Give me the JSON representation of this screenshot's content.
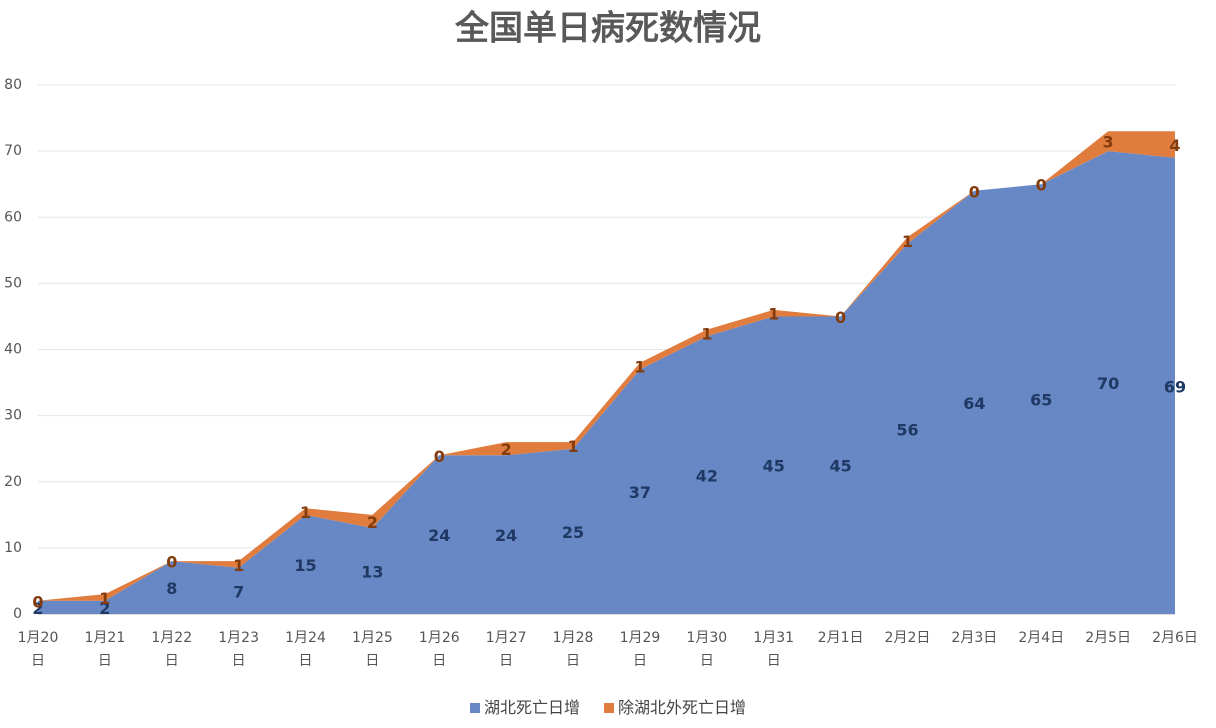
{
  "chart_data": {
    "type": "stacked-area",
    "title": "全国单日病死数情况",
    "categories": [
      "1月20日",
      "1月21日",
      "1月22日",
      "1月23日",
      "1月24日",
      "1月25日",
      "1月26日",
      "1月27日",
      "1月28日",
      "1月29日",
      "1月30日",
      "1月31日",
      "2月1日",
      "2月2日",
      "2月3日",
      "2月4日",
      "2月5日",
      "2月6日"
    ],
    "series": [
      {
        "name": "湖北死亡日增",
        "color": "#6788c4",
        "label_color": "#1f3864",
        "values": [
          2,
          2,
          8,
          7,
          15,
          13,
          24,
          24,
          25,
          37,
          42,
          45,
          45,
          56,
          64,
          65,
          70,
          69
        ]
      },
      {
        "name": "除湖北外死亡日增",
        "color": "#e07c3e",
        "label_color": "#843c0c",
        "values": [
          0,
          1,
          0,
          1,
          1,
          2,
          0,
          2,
          1,
          1,
          1,
          1,
          0,
          1,
          0,
          0,
          3,
          4
        ]
      }
    ],
    "ylim": [
      0,
      80
    ],
    "yticks": [
      0,
      10,
      20,
      30,
      40,
      50,
      60,
      70,
      80
    ],
    "grid": true
  }
}
